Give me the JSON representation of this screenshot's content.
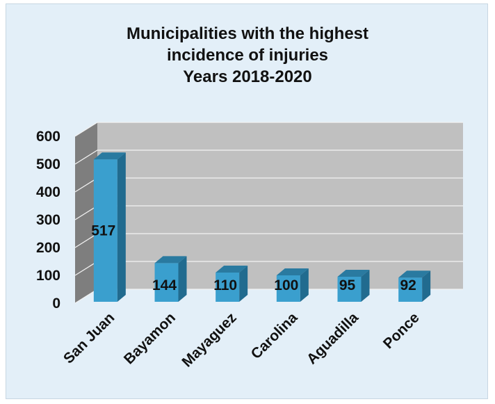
{
  "chart_data": {
    "type": "bar",
    "title_lines": [
      "Municipalities with the highest",
      "incidence of injuries",
      "Years 2018-2020"
    ],
    "categories": [
      "San Juan",
      "Bayamon",
      "Mayaguez",
      "Carolina",
      "Aguadilla",
      "Ponce"
    ],
    "values": [
      517,
      144,
      110,
      100,
      95,
      92
    ],
    "data_labels": [
      "517",
      "144",
      "110",
      "100",
      "95",
      "92"
    ],
    "yticks": [
      "0",
      "100",
      "200",
      "300",
      "400",
      "500",
      "600"
    ],
    "ylim": [
      0,
      600
    ],
    "grid": true,
    "three_d": true,
    "colors": {
      "bar_front": "#3a9fce",
      "bar_side": "#216b8f",
      "bar_top": "#2a7aa0",
      "back_wall": "#c0c0c0",
      "side_wall": "#7e7e7e",
      "gridline": "#f2f2f2",
      "background": "#e3eff8"
    }
  }
}
